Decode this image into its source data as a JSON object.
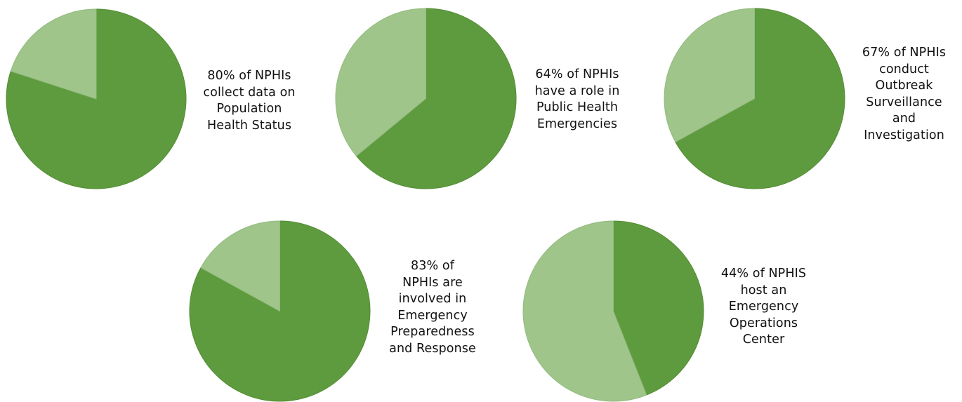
{
  "colors": {
    "dark_slice": "#5e9b3e",
    "light_slice": "#9fc58b",
    "dark_edge": "#548c36",
    "light_edge": "#92bb7e",
    "text": "#111111"
  },
  "chart_data": [
    {
      "type": "pie",
      "title": "",
      "caption_lines": [
        "80% of NPHIs",
        "collect data on",
        "Population",
        "Health Status"
      ],
      "values": [
        80,
        20
      ],
      "unit": "%"
    },
    {
      "type": "pie",
      "title": "",
      "caption_lines": [
        "64% of NPHIs",
        "have a role in",
        "Public Health",
        "Emergencies"
      ],
      "values": [
        64,
        36
      ],
      "unit": "%"
    },
    {
      "type": "pie",
      "title": "",
      "caption_lines": [
        "67% of NPHIs",
        "conduct",
        "Outbreak",
        "Surveillance",
        "and",
        "Investigation"
      ],
      "values": [
        67,
        33
      ],
      "unit": "%"
    },
    {
      "type": "pie",
      "title": "",
      "caption_lines": [
        "83% of",
        "NPHIs are",
        "involved in",
        "Emergency",
        "Preparedness",
        "and Response"
      ],
      "values": [
        83,
        17
      ],
      "unit": "%"
    },
    {
      "type": "pie",
      "title": "",
      "caption_lines": [
        "44% of NPHIS",
        "host an",
        "Emergency",
        "Operations",
        "Center"
      ],
      "values": [
        44,
        56
      ],
      "unit": "%"
    }
  ]
}
